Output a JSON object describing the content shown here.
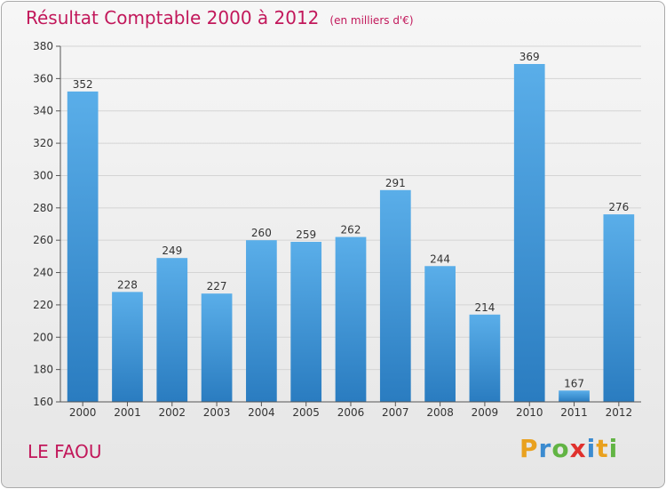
{
  "title": "Résultat Comptable 2000 à 2012",
  "unit": "(en milliers d'€)",
  "place": "LE FAOU",
  "logo": {
    "letters": [
      "P",
      "r",
      "o",
      "x",
      "i",
      "t",
      "i"
    ],
    "colors": [
      "#e9a11f",
      "#3b8bd0",
      "#62b444",
      "#e0312d",
      "#3b8bd0",
      "#e9a11f",
      "#62b444"
    ]
  },
  "colors": {
    "title": "#c2185b",
    "bar_top": "#5aaee9",
    "bar_bottom": "#2a7cc0"
  },
  "chart_data": {
    "type": "bar",
    "categories": [
      "2000",
      "2001",
      "2002",
      "2003",
      "2004",
      "2005",
      "2006",
      "2007",
      "2008",
      "2009",
      "2010",
      "2011",
      "2012"
    ],
    "values": [
      352,
      228,
      249,
      227,
      260,
      259,
      262,
      291,
      244,
      214,
      369,
      167,
      276
    ],
    "ylim": [
      160,
      380
    ],
    "yticks": [
      160,
      180,
      200,
      220,
      240,
      260,
      280,
      300,
      320,
      340,
      360,
      380
    ],
    "grid": true,
    "title": "Résultat Comptable 2000 à 2012",
    "xlabel": "",
    "ylabel": ""
  }
}
